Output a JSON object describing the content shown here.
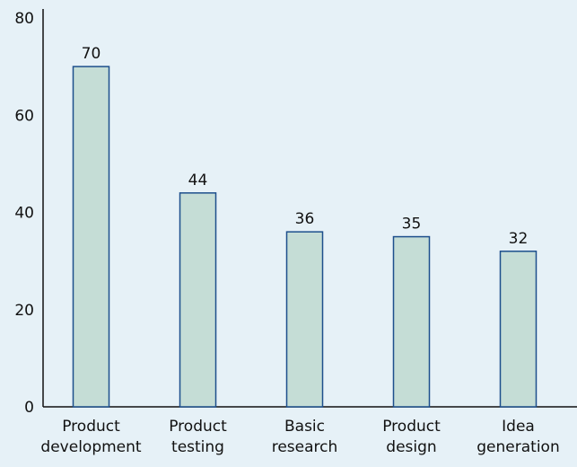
{
  "chart_data": {
    "type": "bar",
    "categories": [
      [
        "Product",
        "development"
      ],
      [
        "Product",
        "testing"
      ],
      [
        "Basic",
        "research"
      ],
      [
        "Product",
        "design"
      ],
      [
        "Idea",
        "generation"
      ]
    ],
    "values": [
      70,
      44,
      36,
      35,
      32
    ],
    "data_labels": [
      "70",
      "44",
      "36",
      "35",
      "32"
    ],
    "title": "",
    "xlabel": "",
    "ylabel": "",
    "ylim": [
      0,
      80
    ],
    "yticks": [
      0,
      20,
      40,
      60,
      80
    ],
    "grid": false,
    "legend": "none",
    "colors": {
      "background": "#e6f1f7",
      "bar_fill": "#c5ddd6",
      "bar_stroke": "#1d4f8c",
      "axis": "#111111"
    }
  }
}
